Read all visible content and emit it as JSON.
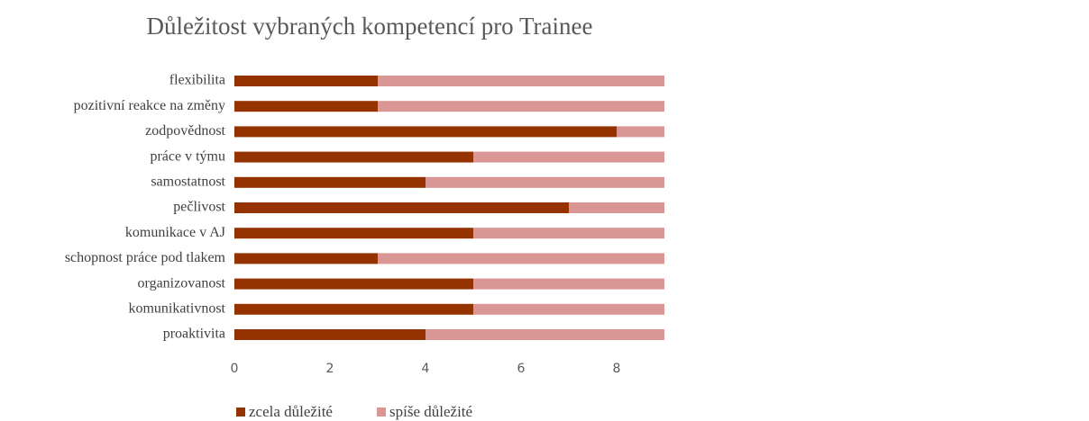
{
  "chart_data": {
    "type": "stacked-barh",
    "title": "Důležitost vybraných kompetencí pro Trainee",
    "categories": [
      "flexibilita",
      "pozitivní reakce na změny",
      "zodpovědnost",
      "práce v týmu",
      "samostatnost",
      "pečlivost",
      "komunikace v AJ",
      "schopnost práce pod tlakem",
      "organizovanost",
      "komunikativnost",
      "proaktivita"
    ],
    "series": [
      {
        "name": "zcela důležité",
        "color": "#943300",
        "values": [
          3,
          3,
          8,
          5,
          4,
          7,
          5,
          3,
          5,
          5,
          4
        ]
      },
      {
        "name": "spíše důležité",
        "color": "#d99694",
        "values": [
          6,
          6,
          1,
          4,
          5,
          2,
          4,
          6,
          4,
          4,
          5
        ]
      }
    ],
    "xlim": [
      0,
      9
    ],
    "xticks": [
      0,
      2,
      4,
      6,
      8
    ],
    "grid": false,
    "legend": "bottom"
  }
}
